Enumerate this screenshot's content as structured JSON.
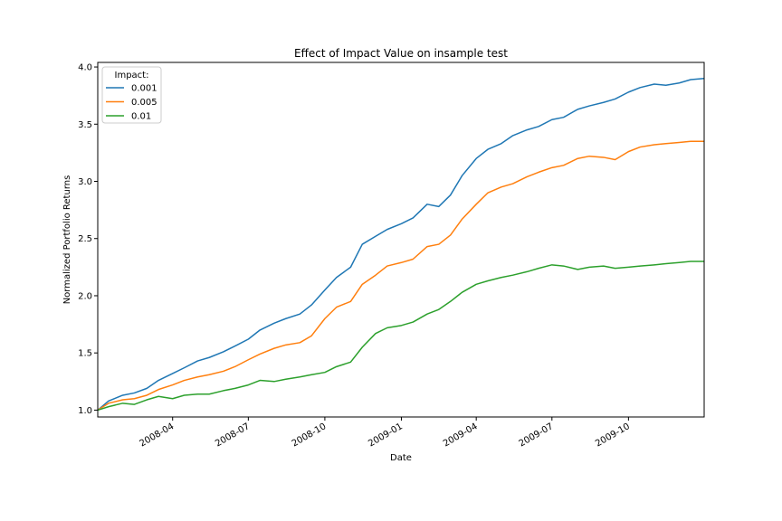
{
  "chart_data": {
    "type": "line",
    "title": "Effect of Impact Value on insample test",
    "xlabel": "Date",
    "ylabel": "Normalized Portfolio Returns",
    "xlim": [
      "2008-01-02",
      "2009-12-31"
    ],
    "ylim": [
      0.94,
      4.04
    ],
    "grid": false,
    "legend": {
      "title": "Impact:",
      "placement": "top-left"
    },
    "x_ticks": [
      {
        "date": "2008-04-01",
        "label": "2008-04"
      },
      {
        "date": "2008-07-01",
        "label": "2008-07"
      },
      {
        "date": "2008-10-01",
        "label": "2008-10"
      },
      {
        "date": "2009-01-01",
        "label": "2009-01"
      },
      {
        "date": "2009-04-01",
        "label": "2009-04"
      },
      {
        "date": "2009-07-01",
        "label": "2009-07"
      },
      {
        "date": "2009-10-01",
        "label": "2009-10"
      }
    ],
    "y_ticks": [
      1.0,
      1.5,
      2.0,
      2.5,
      3.0,
      3.5,
      4.0
    ],
    "y_tick_labels": [
      "1.0",
      "1.5",
      "2.0",
      "2.5",
      "3.0",
      "3.5",
      "4.0"
    ],
    "series": [
      {
        "name": "0.001",
        "color": "#1f77b4",
        "points": [
          [
            "2008-01-02",
            1.0
          ],
          [
            "2008-01-15",
            1.08
          ],
          [
            "2008-02-01",
            1.13
          ],
          [
            "2008-02-15",
            1.15
          ],
          [
            "2008-03-01",
            1.19
          ],
          [
            "2008-03-15",
            1.26
          ],
          [
            "2008-04-01",
            1.32
          ],
          [
            "2008-04-15",
            1.37
          ],
          [
            "2008-05-01",
            1.43
          ],
          [
            "2008-05-15",
            1.46
          ],
          [
            "2008-06-01",
            1.51
          ],
          [
            "2008-06-15",
            1.56
          ],
          [
            "2008-07-01",
            1.62
          ],
          [
            "2008-07-15",
            1.7
          ],
          [
            "2008-08-01",
            1.76
          ],
          [
            "2008-08-15",
            1.8
          ],
          [
            "2008-09-01",
            1.84
          ],
          [
            "2008-09-15",
            1.92
          ],
          [
            "2008-10-01",
            2.05
          ],
          [
            "2008-10-15",
            2.16
          ],
          [
            "2008-11-01",
            2.25
          ],
          [
            "2008-11-15",
            2.45
          ],
          [
            "2008-12-01",
            2.52
          ],
          [
            "2008-12-15",
            2.58
          ],
          [
            "2009-01-01",
            2.63
          ],
          [
            "2009-01-15",
            2.68
          ],
          [
            "2009-02-01",
            2.8
          ],
          [
            "2009-02-15",
            2.78
          ],
          [
            "2009-03-01",
            2.88
          ],
          [
            "2009-03-15",
            3.05
          ],
          [
            "2009-04-01",
            3.2
          ],
          [
            "2009-04-15",
            3.28
          ],
          [
            "2009-05-01",
            3.33
          ],
          [
            "2009-05-15",
            3.4
          ],
          [
            "2009-06-01",
            3.45
          ],
          [
            "2009-06-15",
            3.48
          ],
          [
            "2009-07-01",
            3.54
          ],
          [
            "2009-07-15",
            3.56
          ],
          [
            "2009-08-01",
            3.63
          ],
          [
            "2009-08-15",
            3.66
          ],
          [
            "2009-09-01",
            3.69
          ],
          [
            "2009-09-15",
            3.72
          ],
          [
            "2009-10-01",
            3.78
          ],
          [
            "2009-10-15",
            3.82
          ],
          [
            "2009-11-01",
            3.85
          ],
          [
            "2009-11-15",
            3.84
          ],
          [
            "2009-12-01",
            3.86
          ],
          [
            "2009-12-15",
            3.89
          ],
          [
            "2009-12-31",
            3.9
          ]
        ]
      },
      {
        "name": "0.005",
        "color": "#ff7f0e",
        "points": [
          [
            "2008-01-02",
            1.0
          ],
          [
            "2008-01-15",
            1.06
          ],
          [
            "2008-02-01",
            1.09
          ],
          [
            "2008-02-15",
            1.1
          ],
          [
            "2008-03-01",
            1.13
          ],
          [
            "2008-03-15",
            1.18
          ],
          [
            "2008-04-01",
            1.22
          ],
          [
            "2008-04-15",
            1.26
          ],
          [
            "2008-05-01",
            1.29
          ],
          [
            "2008-05-15",
            1.31
          ],
          [
            "2008-06-01",
            1.34
          ],
          [
            "2008-06-15",
            1.38
          ],
          [
            "2008-07-01",
            1.44
          ],
          [
            "2008-07-15",
            1.49
          ],
          [
            "2008-08-01",
            1.54
          ],
          [
            "2008-08-15",
            1.57
          ],
          [
            "2008-09-01",
            1.59
          ],
          [
            "2008-09-15",
            1.65
          ],
          [
            "2008-10-01",
            1.8
          ],
          [
            "2008-10-15",
            1.9
          ],
          [
            "2008-11-01",
            1.95
          ],
          [
            "2008-11-15",
            2.1
          ],
          [
            "2008-12-01",
            2.18
          ],
          [
            "2008-12-15",
            2.26
          ],
          [
            "2009-01-01",
            2.29
          ],
          [
            "2009-01-15",
            2.32
          ],
          [
            "2009-02-01",
            2.43
          ],
          [
            "2009-02-15",
            2.45
          ],
          [
            "2009-03-01",
            2.53
          ],
          [
            "2009-03-15",
            2.67
          ],
          [
            "2009-04-01",
            2.8
          ],
          [
            "2009-04-15",
            2.9
          ],
          [
            "2009-05-01",
            2.95
          ],
          [
            "2009-05-15",
            2.98
          ],
          [
            "2009-06-01",
            3.04
          ],
          [
            "2009-06-15",
            3.08
          ],
          [
            "2009-07-01",
            3.12
          ],
          [
            "2009-07-15",
            3.14
          ],
          [
            "2009-08-01",
            3.2
          ],
          [
            "2009-08-15",
            3.22
          ],
          [
            "2009-09-01",
            3.21
          ],
          [
            "2009-09-15",
            3.19
          ],
          [
            "2009-10-01",
            3.26
          ],
          [
            "2009-10-15",
            3.3
          ],
          [
            "2009-11-01",
            3.32
          ],
          [
            "2009-11-15",
            3.33
          ],
          [
            "2009-12-01",
            3.34
          ],
          [
            "2009-12-15",
            3.35
          ],
          [
            "2009-12-31",
            3.35
          ]
        ]
      },
      {
        "name": "0.01",
        "color": "#2ca02c",
        "points": [
          [
            "2008-01-02",
            1.0
          ],
          [
            "2008-01-15",
            1.03
          ],
          [
            "2008-02-01",
            1.06
          ],
          [
            "2008-02-15",
            1.05
          ],
          [
            "2008-03-01",
            1.09
          ],
          [
            "2008-03-15",
            1.12
          ],
          [
            "2008-04-01",
            1.1
          ],
          [
            "2008-04-15",
            1.13
          ],
          [
            "2008-05-01",
            1.14
          ],
          [
            "2008-05-15",
            1.14
          ],
          [
            "2008-06-01",
            1.17
          ],
          [
            "2008-06-15",
            1.19
          ],
          [
            "2008-07-01",
            1.22
          ],
          [
            "2008-07-15",
            1.26
          ],
          [
            "2008-08-01",
            1.25
          ],
          [
            "2008-08-15",
            1.27
          ],
          [
            "2008-09-01",
            1.29
          ],
          [
            "2008-09-15",
            1.31
          ],
          [
            "2008-10-01",
            1.33
          ],
          [
            "2008-10-15",
            1.38
          ],
          [
            "2008-11-01",
            1.42
          ],
          [
            "2008-11-15",
            1.55
          ],
          [
            "2008-12-01",
            1.67
          ],
          [
            "2008-12-15",
            1.72
          ],
          [
            "2009-01-01",
            1.74
          ],
          [
            "2009-01-15",
            1.77
          ],
          [
            "2009-02-01",
            1.84
          ],
          [
            "2009-02-15",
            1.88
          ],
          [
            "2009-03-01",
            1.95
          ],
          [
            "2009-03-15",
            2.03
          ],
          [
            "2009-04-01",
            2.1
          ],
          [
            "2009-04-15",
            2.13
          ],
          [
            "2009-05-01",
            2.16
          ],
          [
            "2009-05-15",
            2.18
          ],
          [
            "2009-06-01",
            2.21
          ],
          [
            "2009-06-15",
            2.24
          ],
          [
            "2009-07-01",
            2.27
          ],
          [
            "2009-07-15",
            2.26
          ],
          [
            "2009-08-01",
            2.23
          ],
          [
            "2009-08-15",
            2.25
          ],
          [
            "2009-09-01",
            2.26
          ],
          [
            "2009-09-15",
            2.24
          ],
          [
            "2009-10-01",
            2.25
          ],
          [
            "2009-10-15",
            2.26
          ],
          [
            "2009-11-01",
            2.27
          ],
          [
            "2009-11-15",
            2.28
          ],
          [
            "2009-12-01",
            2.29
          ],
          [
            "2009-12-15",
            2.3
          ],
          [
            "2009-12-31",
            2.3
          ]
        ]
      }
    ]
  }
}
